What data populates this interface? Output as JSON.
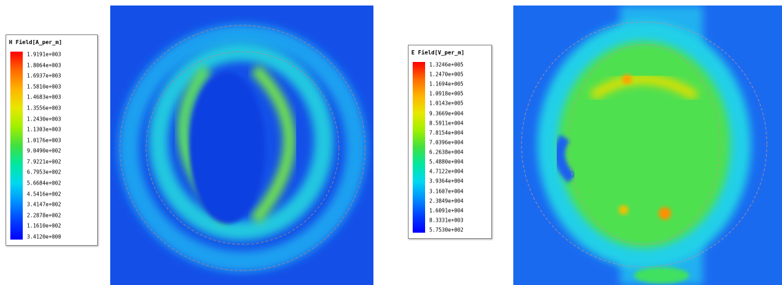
{
  "legends": [
    {
      "title": "H Field[A_per_m]",
      "labels": [
        "1.9191e+003",
        "1.8064e+003",
        "1.6937e+003",
        "1.5810e+003",
        "1.4683e+003",
        "1.3556e+003",
        "1.2430e+003",
        "1.1303e+003",
        "1.0176e+003",
        "9.0490e+002",
        "7.9221e+002",
        "6.7953e+002",
        "5.6684e+002",
        "4.5416e+002",
        "3.4147e+002",
        "2.2878e+002",
        "1.1610e+002",
        "3.4120e+000"
      ]
    },
    {
      "title": "E Field[V_per_m]",
      "labels": [
        "1.3246e+005",
        "1.2470e+005",
        "1.1694e+005",
        "1.0918e+005",
        "1.0143e+005",
        "9.3669e+004",
        "8.5911e+004",
        "7.8154e+004",
        "7.0396e+004",
        "6.2638e+004",
        "5.4880e+004",
        "4.7122e+004",
        "3.9364e+004",
        "3.1607e+004",
        "2.3849e+004",
        "1.6091e+004",
        "8.3331e+003",
        "5.7530e+002"
      ]
    }
  ]
}
